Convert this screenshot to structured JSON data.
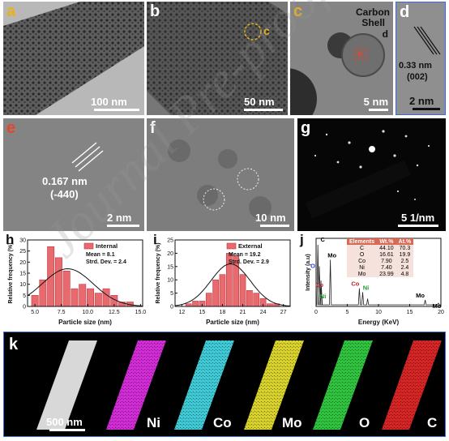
{
  "panels": {
    "a": {
      "label": "a",
      "scale": "100 nm"
    },
    "b": {
      "label": "b",
      "scale": "50 nm",
      "marker": "c"
    },
    "c": {
      "label": "c",
      "scale": "5 nm",
      "note_line1": "Carbon",
      "note_line2": "Shell",
      "marker_d": "d",
      "marker_e": "e"
    },
    "d": {
      "label": "d",
      "scale": "2 nm",
      "spacing": "0.33 nm",
      "plane": "(002)"
    },
    "e": {
      "label": "e",
      "scale": "2 nm",
      "spacing": "0.167 nm",
      "plane": "(-440)"
    },
    "f": {
      "label": "f",
      "scale": "10 nm"
    },
    "g": {
      "label": "g",
      "scale": "5 1/nm"
    },
    "h": {
      "label": "h"
    },
    "i": {
      "label": "i"
    },
    "j": {
      "label": "j"
    },
    "k": {
      "label": "k",
      "scale": "500 nm",
      "maps": [
        "Ni",
        "Co",
        "Mo",
        "O",
        "C"
      ]
    }
  },
  "watermark": "Journal Pre-proof",
  "colors": {
    "label_red": "#e8452a",
    "label_yellow": "#e9b21a",
    "bar": "#e76a6f",
    "bar_edge": "#c2373e"
  },
  "eds_table": {
    "headers": [
      "Elements",
      "Wt.%",
      "At.%"
    ],
    "rows": [
      [
        "C",
        "44.10",
        "70.3"
      ],
      [
        "O",
        "16.61",
        "19.9"
      ],
      [
        "Co",
        "7.90",
        "2.5"
      ],
      [
        "Ni",
        "7.40",
        "2.4"
      ],
      [
        "Mo",
        "23.99",
        "4.8"
      ]
    ]
  },
  "chart_data": [
    {
      "type": "bar",
      "panel": "h",
      "legend": "Internal",
      "stats_mean": "Mean = 8.1",
      "stats_sd": "Strd. Dev. = 2.4",
      "xlabel": "Particle size (nm)",
      "ylabel": "Relative frequency (%)",
      "x": [
        5.0,
        5.75,
        6.5,
        7.25,
        8.0,
        8.75,
        9.5,
        10.25,
        11.0,
        11.75,
        12.5,
        13.25,
        14.0
      ],
      "values": [
        5,
        12,
        27,
        22,
        16,
        8,
        10,
        8,
        6,
        8,
        5,
        2,
        2
      ],
      "fit_mean": 8.1,
      "fit_sd": 2.4,
      "fit_peak": 17,
      "xlim": [
        4.3,
        15.2
      ],
      "ylim": [
        0,
        30
      ],
      "xticks": [
        "5.0",
        "7.5",
        "10.0",
        "12.5",
        "15.0"
      ],
      "yticks": [
        "0",
        "5",
        "10",
        "15",
        "20",
        "25",
        "30"
      ]
    },
    {
      "type": "bar",
      "panel": "i",
      "legend": "External",
      "stats_mean": "Mean = 19.2",
      "stats_sd": "Strd. Dev. = 2.9",
      "xlabel": "Particle size (nm)",
      "ylabel": "Relative frequency (%)",
      "x": [
        13,
        14,
        15,
        16,
        17,
        18,
        19,
        20,
        21,
        22,
        23,
        24,
        25,
        26
      ],
      "values": [
        1,
        2,
        2,
        5,
        10,
        12,
        20,
        19,
        12,
        6,
        5,
        3,
        1,
        1
      ],
      "fit_mean": 19.2,
      "fit_sd": 2.9,
      "fit_peak": 16,
      "xlim": [
        11,
        28
      ],
      "ylim": [
        0,
        25
      ],
      "xticks": [
        "12",
        "15",
        "18",
        "21",
        "24",
        "27"
      ],
      "yticks": [
        "0",
        "5",
        "10",
        "15",
        "20",
        "25"
      ]
    },
    {
      "type": "line",
      "panel": "j",
      "xlabel": "Energy (KeV)",
      "ylabel": "Intensity (a.u)",
      "xlim": [
        0,
        20
      ],
      "xticks": [
        "0",
        "5",
        "10",
        "15",
        "20"
      ],
      "peaks": [
        {
          "x": 0.28,
          "h": 0.95,
          "label": "C",
          "color": "#000000"
        },
        {
          "x": 0.52,
          "h": 0.62,
          "label": "O",
          "color": "#1f3fd8"
        },
        {
          "x": 0.78,
          "h": 0.4,
          "label": "Co",
          "color": "#c0202a"
        },
        {
          "x": 0.85,
          "h": 0.3,
          "label": "Ni",
          "color": "#1e9a2e"
        },
        {
          "x": 2.29,
          "h": 0.72,
          "label": "Mo",
          "color": "#000000"
        },
        {
          "x": 6.93,
          "h": 0.28,
          "label": "Co",
          "color": "#c0202a"
        },
        {
          "x": 7.47,
          "h": 0.22,
          "label": "Ni",
          "color": "#1e9a2e"
        },
        {
          "x": 8.26,
          "h": 0.12,
          "label": "",
          "color": "#000000"
        },
        {
          "x": 17.48,
          "h": 0.1,
          "label": "Mo",
          "color": "#000000"
        },
        {
          "x": 19.6,
          "h": 0.05,
          "label": "Mo",
          "color": "#000000"
        }
      ]
    }
  ]
}
